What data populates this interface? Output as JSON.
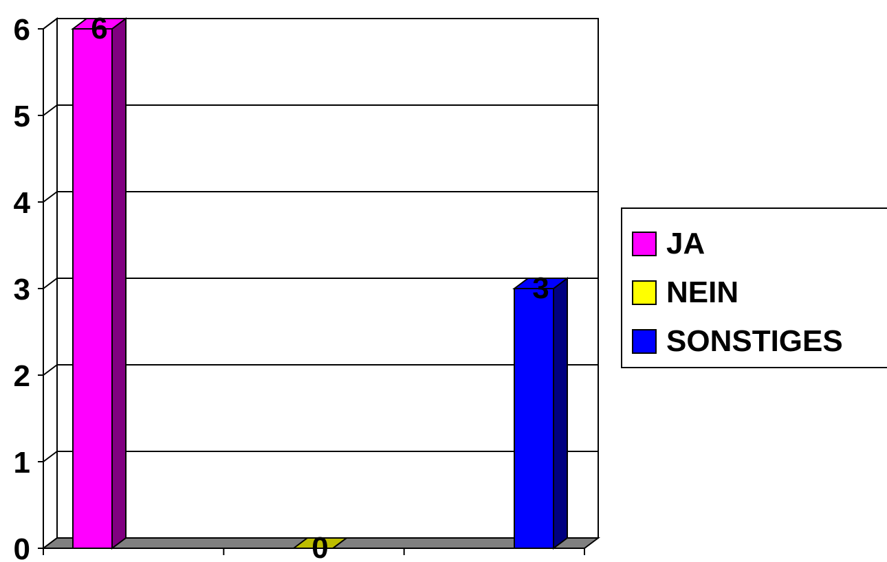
{
  "chart_data": {
    "type": "bar",
    "style": "3d-column",
    "series": [
      {
        "name": "JA",
        "value": 6,
        "color": "#FF00FF",
        "side_color": "#800080"
      },
      {
        "name": "NEIN",
        "value": 0,
        "color": "#FFFF00",
        "side_color": "#BDBD00"
      },
      {
        "name": "SONSTIGES",
        "value": 3,
        "color": "#0000FF",
        "side_color": "#000080"
      }
    ],
    "data_labels": [
      "6",
      "0",
      "3"
    ],
    "y_ticks": [
      "0",
      "1",
      "2",
      "3",
      "4",
      "5",
      "6"
    ],
    "ylim": [
      0,
      6
    ],
    "grid": true,
    "legend_position": "right",
    "floor_color": "#808080"
  }
}
